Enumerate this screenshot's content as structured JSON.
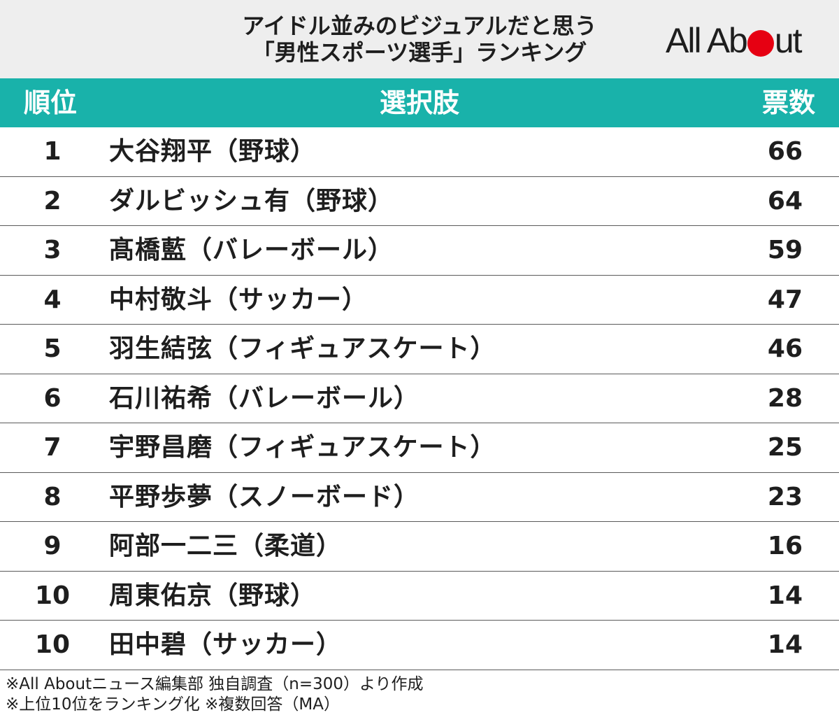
{
  "header": {
    "title_line1": "アイドル並みのビジュアルだと思う",
    "title_line2": "「男性スポーツ選手」ランキング",
    "logo_before": "All Ab",
    "logo_after": "ut",
    "logo_text": "All About",
    "brand_dot_color": "#e60012"
  },
  "table": {
    "header_color": "#19b2aa",
    "columns": {
      "rank": "順位",
      "choice": "選択肢",
      "votes": "票数"
    },
    "rows": [
      {
        "rank": "1",
        "name": "大谷翔平（野球）",
        "votes": "66"
      },
      {
        "rank": "2",
        "name": "ダルビッシュ有（野球）",
        "votes": "64"
      },
      {
        "rank": "3",
        "name": "髙橋藍（バレーボール）",
        "votes": "59"
      },
      {
        "rank": "4",
        "name": "中村敬斗（サッカー）",
        "votes": "47"
      },
      {
        "rank": "5",
        "name": "羽生結弦（フィギュアスケート）",
        "votes": "46"
      },
      {
        "rank": "6",
        "name": "石川祐希（バレーボール）",
        "votes": "28"
      },
      {
        "rank": "7",
        "name": "宇野昌磨（フィギュアスケート）",
        "votes": "25"
      },
      {
        "rank": "8",
        "name": "平野歩夢（スノーボード）",
        "votes": "23"
      },
      {
        "rank": "9",
        "name": "阿部一二三（柔道）",
        "votes": "16"
      },
      {
        "rank": "10",
        "name": "周東佑京（野球）",
        "votes": "14"
      },
      {
        "rank": "10",
        "name": "田中碧（サッカー）",
        "votes": "14"
      }
    ]
  },
  "notes": {
    "line1": "※All Aboutニュース編集部 独自調査（n=300）より作成",
    "line2": "※上位10位をランキング化 ※複数回答（MA）"
  }
}
